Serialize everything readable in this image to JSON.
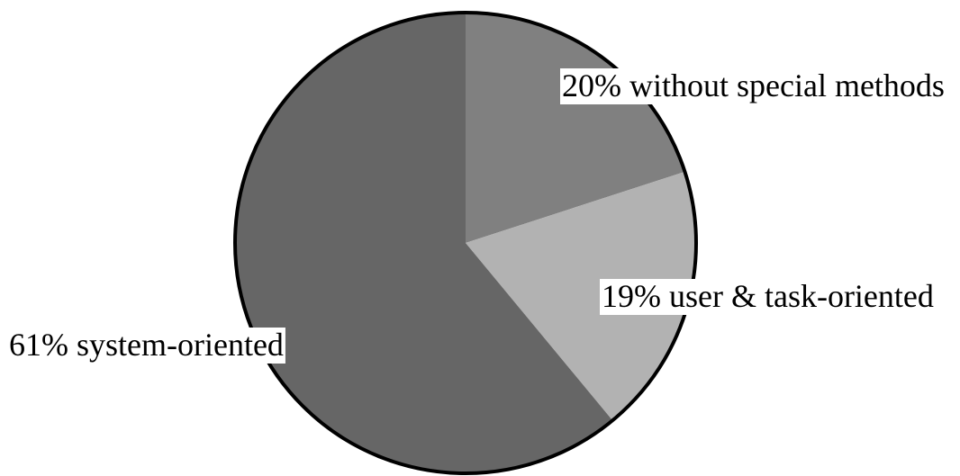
{
  "chart_data": {
    "type": "pie",
    "slices": [
      {
        "label": "20% without special methods",
        "value": 20,
        "color": "#808080"
      },
      {
        "label": "19% user & task-oriented",
        "value": 19,
        "color": "#b2b2b2"
      },
      {
        "label": "61% system-oriented",
        "value": 61,
        "color": "#666666"
      }
    ],
    "outline_color": "#000000"
  }
}
